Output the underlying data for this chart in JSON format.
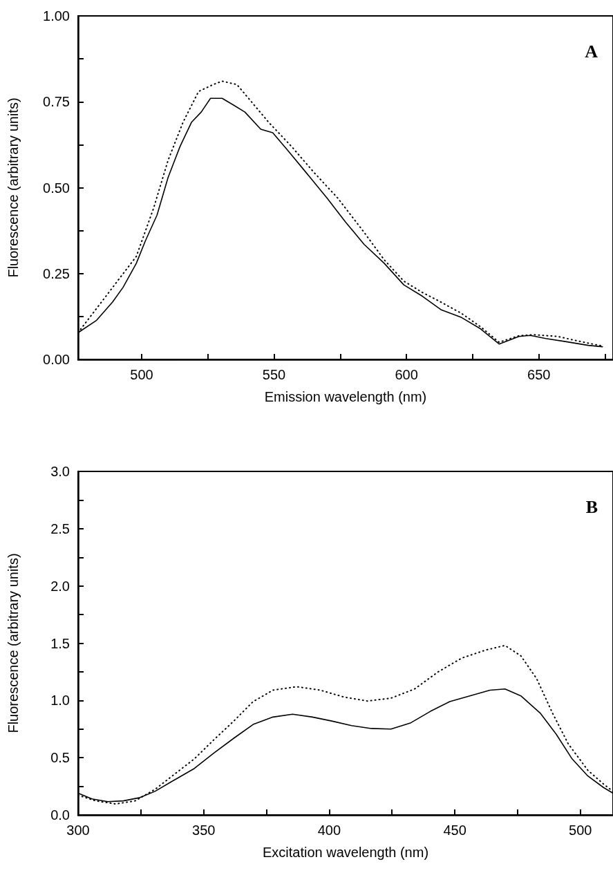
{
  "chart_data": [
    {
      "type": "line",
      "xlabel": "Emission wavelength (nm)",
      "ylabel": "Fluorescence (arbitrary units)",
      "annotations": [
        "A"
      ],
      "marker": "none",
      "grid": false,
      "xlim": [
        476,
        678
      ],
      "ylim": [
        0,
        1
      ],
      "xticks": [
        500,
        {
          "value": 525,
          "label": null
        },
        550,
        {
          "value": 575,
          "label": null
        },
        600,
        {
          "value": 625,
          "label": null
        },
        650,
        {
          "value": 675,
          "label": null
        }
      ],
      "yticks": [
        "0.00",
        {
          "value": 0.125,
          "label": null
        },
        {
          "value": 0.25,
          "label": "0.25"
        },
        {
          "value": 0.375,
          "label": null
        },
        {
          "value": 0.5,
          "label": "0.50"
        },
        {
          "value": 0.625,
          "label": null
        },
        {
          "value": 0.75,
          "label": "0.75"
        },
        {
          "value": 0.875,
          "label": null
        },
        {
          "value": 1,
          "label": "1.00"
        }
      ],
      "series": [
        {
          "color": "#000000",
          "line_style": "solid",
          "x": [
            476,
            483,
            489,
            493,
            498,
            501.4,
            505.8,
            510,
            514.5,
            518.8,
            522.5,
            526,
            530.4,
            534.8,
            539,
            545,
            549.5,
            555,
            562,
            570,
            577,
            584,
            591.6,
            599,
            606,
            613,
            620.8,
            628,
            635,
            642.5,
            646.8,
            652.6,
            660,
            668.6,
            674
          ],
          "values": [
            0.078,
            0.114,
            0.167,
            0.21,
            0.28,
            0.345,
            0.42,
            0.53,
            0.62,
            0.69,
            0.72,
            0.76,
            0.76,
            0.74,
            0.72,
            0.67,
            0.66,
            0.61,
            0.545,
            0.47,
            0.4,
            0.335,
            0.28,
            0.217,
            0.184,
            0.145,
            0.122,
            0.089,
            0.045,
            0.067,
            0.07,
            0.061,
            0.052,
            0.041,
            0.037
          ]
        },
        {
          "color": "#000000",
          "line_style": "dotted",
          "x": [
            476,
            498,
            504.5,
            510,
            515.6,
            521.5,
            527,
            530.4,
            536,
            542,
            548,
            556.6,
            565,
            574,
            584,
            591.6,
            599,
            606,
            613,
            620.8,
            628,
            635,
            642.5,
            648,
            657,
            665.8,
            674
          ],
          "values": [
            0.078,
            0.3,
            0.44,
            0.58,
            0.69,
            0.78,
            0.8,
            0.81,
            0.8,
            0.745,
            0.69,
            0.62,
            0.545,
            0.47,
            0.37,
            0.29,
            0.228,
            0.195,
            0.167,
            0.134,
            0.095,
            0.05,
            0.069,
            0.072,
            0.067,
            0.052,
            0.039
          ]
        }
      ]
    },
    {
      "type": "line",
      "xlabel": "Excitation wavelength (nm)",
      "ylabel": "Fluorescence (arbitrary units)",
      "annotations": [
        "B"
      ],
      "marker": "none",
      "grid": false,
      "xlim": [
        300,
        513
      ],
      "ylim": [
        0,
        3
      ],
      "xticks": [
        300,
        {
          "value": 325,
          "label": null
        },
        350,
        {
          "value": 375,
          "label": null
        },
        400,
        {
          "value": 425,
          "label": null
        },
        450,
        {
          "value": 475,
          "label": null
        },
        500
      ],
      "yticks": [
        "0.0",
        {
          "value": 0.25,
          "label": null
        },
        {
          "value": 0.5,
          "label": "0.5"
        },
        {
          "value": 0.75,
          "label": null
        },
        {
          "value": 1,
          "label": "1.0"
        },
        {
          "value": 1.25,
          "label": null
        },
        {
          "value": 1.5,
          "label": "1.5"
        },
        {
          "value": 1.75,
          "label": null
        },
        {
          "value": 2,
          "label": "2.0"
        },
        {
          "value": 2.25,
          "label": null
        },
        {
          "value": 2.5,
          "label": "2.5"
        },
        {
          "value": 2.75,
          "label": null
        },
        {
          "value": 3,
          "label": "3.0"
        }
      ],
      "series": [
        {
          "color": "#000000",
          "line_style": "solid",
          "x": [
            300,
            305.5,
            311.8,
            318,
            324.3,
            330.6,
            338.4,
            346.3,
            354,
            362,
            369.7,
            377.6,
            385.4,
            393.3,
            401,
            408.9,
            416.8,
            424.6,
            432.5,
            440.3,
            448,
            456,
            464,
            470,
            476.3,
            484,
            490.4,
            496.7,
            503,
            509.2,
            513
          ],
          "values": [
            0.19,
            0.14,
            0.116,
            0.123,
            0.15,
            0.206,
            0.306,
            0.406,
            0.54,
            0.67,
            0.79,
            0.855,
            0.88,
            0.855,
            0.82,
            0.78,
            0.755,
            0.75,
            0.805,
            0.905,
            0.99,
            1.04,
            1.09,
            1.1,
            1.04,
            0.89,
            0.705,
            0.49,
            0.34,
            0.24,
            0.19
          ]
        },
        {
          "color": "#000000",
          "line_style": "dotted",
          "x": [
            300,
            307,
            315,
            322.7,
            330.6,
            338.4,
            346.3,
            354,
            362,
            369.7,
            377.6,
            387,
            396.4,
            405.8,
            415.2,
            424.6,
            434,
            443.4,
            452.8,
            462.3,
            470,
            476.3,
            482.6,
            488.9,
            495.2,
            503,
            509.2,
            513
          ],
          "values": [
            0.173,
            0.123,
            0.096,
            0.123,
            0.223,
            0.356,
            0.49,
            0.655,
            0.82,
            0.99,
            1.09,
            1.12,
            1.09,
            1.03,
            0.995,
            1.02,
            1.1,
            1.25,
            1.37,
            1.44,
            1.48,
            1.39,
            1.19,
            0.89,
            0.62,
            0.39,
            0.27,
            0.206
          ]
        }
      ]
    }
  ]
}
